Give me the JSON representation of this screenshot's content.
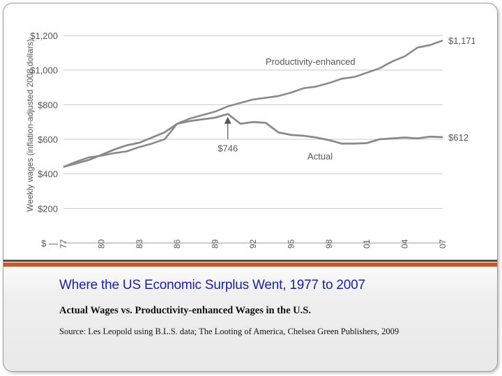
{
  "slide": {
    "title": "Where the US Economic Surplus Went,  1977 to 2007",
    "subtitle": "Actual Wages vs. Productivity-enhanced Wages in the U.S.",
    "source": "Source: Les Leopold using B.L.S. data;  The Looting of America, Chelsea Green Publishers, 2009",
    "colors": {
      "title": "#1b1f9e",
      "accent_bar": "#c85a2a",
      "divider": "#4d4d4d",
      "line": "#8a8a8a"
    }
  },
  "chart_data": {
    "type": "line",
    "title": "",
    "xlabel": "",
    "ylabel": "Weekly wages (inflation-adjusted 2008 dollars)",
    "ylim": [
      0,
      1200
    ],
    "yticks": [
      0,
      200,
      400,
      600,
      800,
      1000,
      1200
    ],
    "ytick_labels": [
      "$ —",
      "$200",
      "$400",
      "$600",
      "$800",
      "$1,000",
      "$1,200"
    ],
    "grid": true,
    "legend": "inline labels",
    "x": [
      1977,
      1978,
      1979,
      1980,
      1981,
      1982,
      1983,
      1984,
      1985,
      1986,
      1987,
      1988,
      1989,
      1990,
      1991,
      1992,
      1993,
      1994,
      1995,
      1996,
      1997,
      1998,
      1999,
      2000,
      2001,
      2002,
      2003,
      2004,
      2005,
      2006,
      2007
    ],
    "series": [
      {
        "name": "Productivity-enhanced",
        "values": [
          440,
          470,
          495,
          505,
          520,
          530,
          555,
          575,
          600,
          690,
          720,
          740,
          760,
          790,
          810,
          830,
          840,
          850,
          870,
          895,
          905,
          925,
          950,
          960,
          985,
          1010,
          1050,
          1080,
          1130,
          1145,
          1171
        ],
        "end_label": "$1,171"
      },
      {
        "name": "Actual",
        "values": [
          440,
          460,
          480,
          510,
          540,
          565,
          580,
          610,
          640,
          690,
          705,
          715,
          725,
          746,
          690,
          700,
          695,
          640,
          625,
          620,
          610,
          595,
          575,
          575,
          578,
          600,
          605,
          610,
          605,
          615,
          612
        ],
        "end_label": "$612"
      }
    ],
    "annotations": [
      {
        "text": "$746",
        "x": 1990,
        "y": 746,
        "arrow": true
      }
    ],
    "xtick_labels": [
      "77",
      "80",
      "83",
      "86",
      "89",
      "92",
      "95",
      "98",
      "01",
      "04",
      "07"
    ]
  }
}
